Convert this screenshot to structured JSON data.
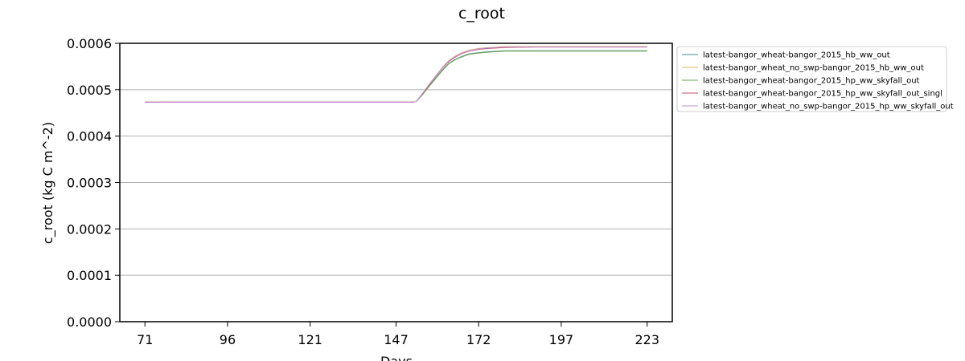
{
  "chart_data": {
    "type": "line",
    "title": "c_root",
    "xlabel": "Days",
    "ylabel": "c_root (kg C m^-2)",
    "xlim": [
      63.4,
      230.6
    ],
    "ylim": [
      0.0,
      0.0006
    ],
    "xticks": [
      71,
      96,
      121,
      147,
      172,
      197,
      223
    ],
    "yticks": [
      "0.0000",
      "0.0001",
      "0.0002",
      "0.0003",
      "0.0004",
      "0.0005",
      "0.0006"
    ],
    "grid": "horizontal",
    "legend_position": "outside-right",
    "series": [
      {
        "name": "latest-bangor_wheat-bangor_2015_hb_ww_out",
        "color": "#4c8c8c",
        "x": [
          71,
          100,
          130,
          152,
          153,
          155,
          157,
          159,
          161,
          163,
          165,
          167,
          169,
          172,
          175,
          180,
          190,
          200,
          210,
          223
        ],
        "y": [
          0.000473,
          0.000473,
          0.000473,
          0.000473,
          0.000474,
          0.00049,
          0.000508,
          0.000525,
          0.000542,
          0.000557,
          0.000566,
          0.000572,
          0.000577,
          0.00058,
          0.000582,
          0.000584,
          0.000584,
          0.000584,
          0.000584,
          0.000584
        ]
      },
      {
        "name": "latest-bangor_wheat_no_swp-bangor_2015_hb_ww_out",
        "color": "#e0b060",
        "x": [
          71,
          100,
          130,
          152,
          153,
          155,
          157,
          159,
          161,
          163,
          165,
          167,
          169,
          172,
          175,
          180,
          190,
          200,
          210,
          223
        ],
        "y": [
          0.000473,
          0.000473,
          0.000473,
          0.000473,
          0.000474,
          0.000492,
          0.000512,
          0.00053,
          0.000548,
          0.000563,
          0.000573,
          0.00058,
          0.000585,
          0.000589,
          0.000591,
          0.000593,
          0.000593,
          0.000593,
          0.000593,
          0.000593
        ]
      },
      {
        "name": "latest-bangor_wheat-bangor_2015_hp_ww_skyfall_out",
        "color": "#6aa84f",
        "x": [
          71,
          100,
          130,
          152,
          153,
          155,
          157,
          159,
          161,
          163,
          165,
          167,
          169,
          172,
          175,
          180,
          190,
          200,
          210,
          223
        ],
        "y": [
          0.000473,
          0.000473,
          0.000473,
          0.000473,
          0.000474,
          0.000489,
          0.000507,
          0.000524,
          0.000541,
          0.000556,
          0.000565,
          0.000571,
          0.000576,
          0.000579,
          0.000581,
          0.000583,
          0.000583,
          0.000583,
          0.000583,
          0.000583
        ]
      },
      {
        "name": "latest-bangor_wheat-bangor_2015_hp_ww_skyfall_out_singl",
        "color": "#c0506e",
        "x": [
          71,
          100,
          130,
          152,
          153,
          155,
          157,
          159,
          161,
          163,
          165,
          167,
          169,
          172,
          175,
          180,
          190,
          200,
          210,
          223
        ],
        "y": [
          0.000473,
          0.000473,
          0.000473,
          0.000473,
          0.000474,
          0.000491,
          0.00051,
          0.000528,
          0.000546,
          0.000561,
          0.000571,
          0.000578,
          0.000583,
          0.000587,
          0.000589,
          0.000591,
          0.000592,
          0.000592,
          0.000592,
          0.000592
        ]
      },
      {
        "name": "latest-bangor_wheat_no_swp-bangor_2015_hp_ww_skyfall_out",
        "color": "#c090d8",
        "x": [
          71,
          100,
          130,
          152,
          153,
          155,
          157,
          159,
          161,
          163,
          165,
          167,
          169,
          172,
          175,
          180,
          190,
          200,
          210,
          223
        ],
        "y": [
          0.000473,
          0.000473,
          0.000473,
          0.000473,
          0.000474,
          0.000492,
          0.000511,
          0.000529,
          0.000547,
          0.000562,
          0.000572,
          0.000579,
          0.000584,
          0.000588,
          0.00059,
          0.000592,
          0.000592,
          0.000592,
          0.000592,
          0.000592
        ]
      }
    ]
  }
}
